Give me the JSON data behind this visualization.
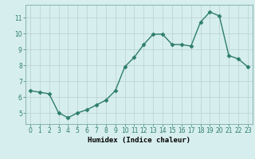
{
  "x": [
    0,
    1,
    2,
    3,
    4,
    5,
    6,
    7,
    8,
    9,
    10,
    11,
    12,
    13,
    14,
    15,
    16,
    17,
    18,
    19,
    20,
    21,
    22,
    23
  ],
  "y": [
    6.4,
    6.3,
    6.2,
    5.0,
    4.7,
    5.0,
    5.2,
    5.5,
    5.8,
    6.4,
    7.9,
    8.5,
    9.3,
    9.95,
    9.95,
    9.3,
    9.3,
    9.2,
    10.7,
    11.35,
    11.1,
    8.6,
    8.4,
    7.9
  ],
  "line_color": "#2e7d6e",
  "marker": "D",
  "marker_size": 2.5,
  "bg_color": "#d6eeed",
  "grid_color": "#b8d0d0",
  "xlabel": "Humidex (Indice chaleur)",
  "xlim": [
    -0.5,
    23.5
  ],
  "ylim": [
    4.3,
    11.8
  ],
  "yticks": [
    5,
    6,
    7,
    8,
    9,
    10,
    11
  ],
  "xticks": [
    0,
    1,
    2,
    3,
    4,
    5,
    6,
    7,
    8,
    9,
    10,
    11,
    12,
    13,
    14,
    15,
    16,
    17,
    18,
    19,
    20,
    21,
    22,
    23
  ],
  "tick_fontsize": 5.5,
  "xlabel_fontsize": 6.5
}
